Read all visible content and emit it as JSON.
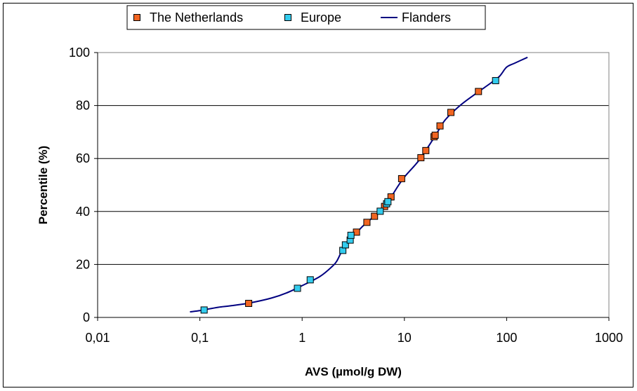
{
  "chart_data": {
    "type": "scatter",
    "xlabel": "AVS (µmol/g DW)",
    "ylabel": "Percentile (%)",
    "x_scale": "log",
    "xlim": [
      0.01,
      1000
    ],
    "ylim": [
      0,
      100
    ],
    "x_ticks": [
      0.01,
      0.1,
      1,
      10,
      100,
      1000
    ],
    "x_tick_labels": [
      "0,01",
      "0,1",
      "1",
      "10",
      "100",
      "1000"
    ],
    "y_ticks": [
      0,
      20,
      40,
      60,
      80,
      100
    ],
    "y_tick_labels": [
      "0",
      "20",
      "40",
      "60",
      "80",
      "100"
    ],
    "grid": "horizontal",
    "legend_position": "top",
    "series": [
      {
        "name": "The Netherlands",
        "kind": "markers",
        "color": "#F26522",
        "points": [
          [
            0.3,
            5.3
          ],
          [
            3.4,
            32.2
          ],
          [
            4.3,
            35.9
          ],
          [
            5.1,
            38.2
          ],
          [
            6.4,
            41.9
          ],
          [
            7.4,
            45.5
          ],
          [
            9.4,
            52.4
          ],
          [
            14.5,
            60.3
          ],
          [
            16.2,
            63.0
          ],
          [
            19.5,
            68.2
          ],
          [
            20.0,
            68.8
          ],
          [
            22.3,
            72.3
          ],
          [
            28.5,
            77.4
          ],
          [
            53.0,
            85.3
          ]
        ]
      },
      {
        "name": "Europe",
        "kind": "markers",
        "color": "#33CCEE",
        "points": [
          [
            0.11,
            2.8
          ],
          [
            0.9,
            11.0
          ],
          [
            1.2,
            14.2
          ],
          [
            2.5,
            25.3
          ],
          [
            2.65,
            27.4
          ],
          [
            2.95,
            29.2
          ],
          [
            3.0,
            31.0
          ],
          [
            5.8,
            40.1
          ],
          [
            6.7,
            42.9
          ],
          [
            6.9,
            43.7
          ],
          [
            78.0,
            89.4
          ]
        ]
      },
      {
        "name": "Flanders",
        "kind": "line",
        "color": "#000080",
        "points": [
          [
            0.08,
            2.1
          ],
          [
            0.1,
            2.6
          ],
          [
            0.15,
            3.8
          ],
          [
            0.2,
            4.4
          ],
          [
            0.3,
            5.4
          ],
          [
            0.5,
            7.3
          ],
          [
            0.7,
            9.2
          ],
          [
            1.0,
            12.0
          ],
          [
            1.5,
            15.5
          ],
          [
            2.0,
            19.5
          ],
          [
            2.2,
            21.5
          ],
          [
            2.4,
            24.5
          ],
          [
            2.6,
            27.0
          ],
          [
            3.0,
            30.5
          ],
          [
            3.5,
            32.5
          ],
          [
            4.0,
            34.8
          ],
          [
            5.0,
            38.0
          ],
          [
            6.0,
            40.5
          ],
          [
            7.0,
            43.5
          ],
          [
            8.0,
            47.5
          ],
          [
            10.0,
            53.0
          ],
          [
            14.0,
            59.5
          ],
          [
            20.0,
            68.5
          ],
          [
            25.0,
            74.5
          ],
          [
            35.0,
            80.0
          ],
          [
            50.0,
            84.5
          ],
          [
            70.0,
            88.5
          ],
          [
            85.0,
            91.0
          ],
          [
            100.0,
            94.5
          ],
          [
            120.0,
            96.0
          ],
          [
            160.0,
            98.2
          ]
        ]
      }
    ]
  }
}
